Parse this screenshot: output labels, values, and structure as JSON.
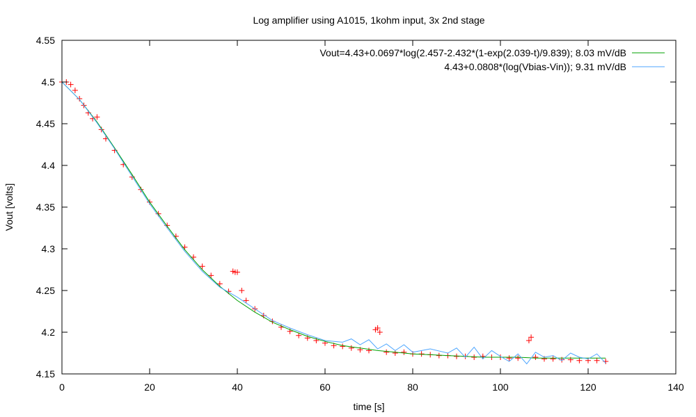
{
  "chart_data": {
    "type": "scatter",
    "title": "Log amplifier using A1015, 1kohm input, 3x 2nd stage",
    "xlabel": "time [s]",
    "ylabel": "Vout [volts]",
    "xlim": [
      0,
      140
    ],
    "ylim": [
      4.15,
      4.55
    ],
    "x_ticks": [
      "0",
      "20",
      "40",
      "60",
      "80",
      "100",
      "120",
      "140"
    ],
    "y_ticks": [
      "4.15",
      "4.2",
      "4.25",
      "4.3",
      "4.35",
      "4.4",
      "4.45",
      "4.5",
      "4.55"
    ],
    "grid": false,
    "legend_position": "top-right",
    "colors": {
      "measured": "#ff0000",
      "fit1": "#00a000",
      "fit2": "#4da6ff"
    },
    "series": [
      {
        "kind": "points",
        "marker": "plus",
        "color": "#ff0000",
        "x": [
          0,
          1,
          2,
          3,
          4,
          5,
          6,
          7,
          8,
          9,
          10,
          12,
          14,
          16,
          18,
          20,
          22,
          24,
          26,
          28,
          30,
          32,
          34,
          36,
          38,
          39,
          39.5,
          40,
          41,
          42,
          44,
          46,
          48,
          50,
          52,
          54,
          56,
          58,
          60,
          62,
          64,
          66,
          68,
          70,
          71.5,
          72,
          72.5,
          74,
          76,
          78,
          80,
          82,
          84,
          86,
          88,
          90,
          92,
          94,
          96,
          98,
          100,
          102,
          104,
          106.5,
          107,
          108,
          110,
          112,
          114,
          116,
          118,
          120,
          122,
          124
        ],
        "y": [
          4.5,
          4.5,
          4.497,
          4.49,
          4.48,
          4.472,
          4.463,
          4.456,
          4.458,
          4.443,
          4.432,
          4.418,
          4.401,
          4.386,
          4.371,
          4.356,
          4.342,
          4.328,
          4.315,
          4.302,
          4.29,
          4.279,
          4.268,
          4.258,
          4.249,
          4.273,
          4.272,
          4.272,
          4.25,
          4.238,
          4.228,
          4.22,
          4.213,
          4.206,
          4.201,
          4.196,
          4.193,
          4.19,
          4.187,
          4.184,
          4.183,
          4.181,
          4.179,
          4.178,
          4.203,
          4.205,
          4.2,
          4.176,
          4.175,
          4.176,
          4.174,
          4.174,
          4.173,
          4.172,
          4.172,
          4.171,
          4.171,
          4.17,
          4.171,
          4.17,
          4.17,
          4.169,
          4.169,
          4.19,
          4.194,
          4.17,
          4.168,
          4.168,
          4.167,
          4.167,
          4.166,
          4.166,
          4.166,
          4.165
        ]
      },
      {
        "name": "Vout=4.43+0.0697*log(2.457-2.432*(1-exp(2.039-t)/9.839); 8.03 mV/dB",
        "kind": "line",
        "color": "#00a000",
        "x": [
          0,
          4,
          8,
          12,
          16,
          20,
          24,
          28,
          32,
          36,
          40,
          44,
          48,
          52,
          56,
          60,
          64,
          68,
          72,
          76,
          80,
          84,
          88,
          92,
          96,
          100,
          104,
          108,
          112,
          116,
          120,
          124
        ],
        "y": [
          4.5,
          4.479,
          4.452,
          4.421,
          4.389,
          4.356,
          4.327,
          4.299,
          4.275,
          4.255,
          4.238,
          4.224,
          4.212,
          4.203,
          4.195,
          4.189,
          4.184,
          4.181,
          4.178,
          4.176,
          4.174,
          4.173,
          4.172,
          4.171,
          4.17,
          4.17,
          4.17,
          4.169,
          4.169,
          4.169,
          4.169,
          4.169
        ]
      },
      {
        "name": "4.43+0.0808*(log(Vbias-Vin)); 9.31 mV/dB",
        "kind": "line",
        "color": "#4da6ff",
        "x": [
          0,
          4,
          8,
          12,
          16,
          20,
          24,
          28,
          32,
          36,
          40,
          44,
          48,
          52,
          56,
          60,
          64,
          66,
          68,
          70,
          72,
          74,
          76,
          78,
          80,
          84,
          88,
          90,
          92,
          94,
          96,
          98,
          100,
          102,
          104,
          106,
          108,
          110,
          112,
          114,
          116,
          118,
          120,
          122,
          124
        ],
        "y": [
          4.5,
          4.479,
          4.451,
          4.42,
          4.387,
          4.354,
          4.325,
          4.297,
          4.273,
          4.254,
          4.242,
          4.228,
          4.214,
          4.205,
          4.197,
          4.19,
          4.188,
          4.192,
          4.185,
          4.191,
          4.18,
          4.186,
          4.178,
          4.185,
          4.176,
          4.18,
          4.175,
          4.181,
          4.17,
          4.182,
          4.168,
          4.178,
          4.171,
          4.165,
          4.174,
          4.162,
          4.176,
          4.17,
          4.172,
          4.166,
          4.175,
          4.17,
          4.168,
          4.174,
          4.163
        ]
      }
    ]
  }
}
